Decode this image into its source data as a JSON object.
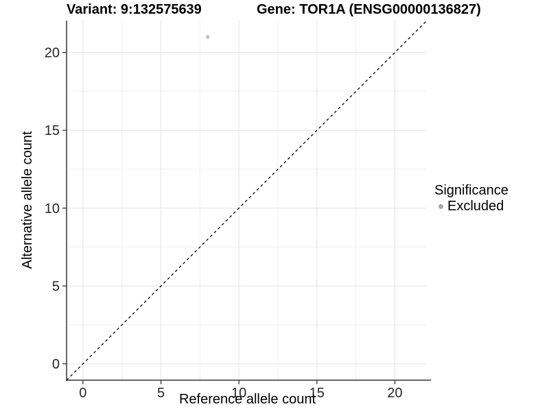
{
  "figure": {
    "background": "#ffffff"
  },
  "chart_data": {
    "type": "scatter",
    "titles": {
      "left": "Variant: 9:132575639",
      "right": "Gene: TOR1A (ENSG00000136827)"
    },
    "xlabel": "Reference allele count",
    "ylabel": "Alternative allele count",
    "xlim": [
      -1.05,
      22.05
    ],
    "ylim": [
      -1.05,
      22.05
    ],
    "x_major_ticks": [
      0,
      5,
      10,
      15,
      20
    ],
    "y_major_ticks": [
      0,
      5,
      10,
      15,
      20
    ],
    "x_minor_ticks": [
      2.5,
      7.5,
      12.5,
      17.5
    ],
    "y_minor_ticks": [
      2.5,
      7.5,
      12.5,
      17.5
    ],
    "grid": "major and minor gridlines on white panel",
    "series": [
      {
        "name": "Excluded",
        "color": "#c4c4c4",
        "point_radius": 2.8,
        "points": [
          {
            "x": 8,
            "y": 21
          }
        ]
      }
    ],
    "reference_line": {
      "kind": "identity y=x diagonal",
      "style": "dashed",
      "color": "#000000"
    },
    "legend": {
      "title": "Significance",
      "position": "right",
      "entries": [
        {
          "label": "Excluded",
          "swatch_color": "#a6a6a6"
        }
      ]
    },
    "colors": {
      "axis_line": "#333333",
      "tick_mark": "#333333",
      "tick_label": "#262626",
      "grid_major": "#e3e3e3",
      "grid_minor": "#f0f0f0",
      "title_text": "#000000"
    }
  }
}
